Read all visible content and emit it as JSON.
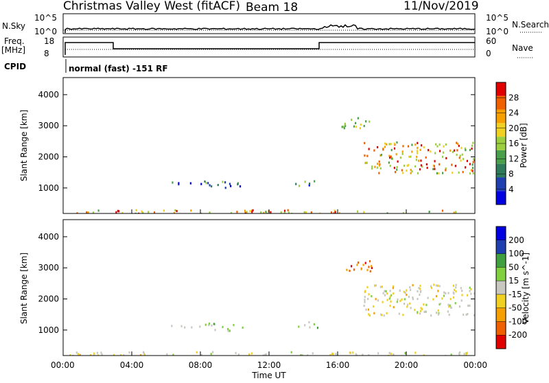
{
  "header": {
    "station": "Christmas Valley West (fitACF)",
    "beam": "Beam 18",
    "date": "11/Nov/2019"
  },
  "status_panels": {
    "nsky": {
      "label": "N.Sky",
      "ticks": [
        "10^5",
        "10^0"
      ]
    },
    "nsearch": {
      "label": "N.Search",
      "ticks": [
        "10^5",
        "10^0"
      ]
    },
    "freq": {
      "label": "Freq.",
      "unit": "[MHz]",
      "ticks": [
        "18",
        "8"
      ]
    },
    "nave": {
      "label": "Nave",
      "ticks": [
        "60",
        "0"
      ]
    },
    "cpid": {
      "label": "CPID",
      "mode": "normal (fast) -151 RF"
    }
  },
  "chart_data": [
    {
      "type": "heatmap",
      "name": "power",
      "xlabel": "Time UT",
      "ylabel": "Slant Range [km]",
      "x_ticks": [
        "00:00",
        "04:00",
        "08:00",
        "12:00",
        "16:00",
        "20:00",
        "00:00"
      ],
      "xlim_hours": [
        0,
        24
      ],
      "y_ticks": [
        1000,
        2000,
        3000,
        4000
      ],
      "ylim": [
        180,
        4550
      ],
      "colorbar": {
        "label": "Power [dB]",
        "ticks": [
          "28",
          "24",
          "20",
          "16",
          "12",
          "8",
          "4"
        ],
        "colors": [
          "#0000e0",
          "#1f3fb0",
          "#2f7a5a",
          "#4a9f4a",
          "#9ccf40",
          "#f0d020",
          "#f5a000",
          "#f06000",
          "#e00000"
        ]
      },
      "echo_regions": [
        {
          "t": [
            0.2,
            23.8
          ],
          "r": [
            200,
            320
          ],
          "level": "high"
        },
        {
          "t": [
            6.0,
            8.5
          ],
          "r": [
            1100,
            1250
          ],
          "level": "low"
        },
        {
          "t": [
            8.5,
            10.5
          ],
          "r": [
            1000,
            1250
          ],
          "level": "low"
        },
        {
          "t": [
            13.5,
            14.8
          ],
          "r": [
            1100,
            1300
          ],
          "level": "low"
        },
        {
          "t": [
            16.2,
            18.0
          ],
          "r": [
            2900,
            3300
          ],
          "level": "mid"
        },
        {
          "t": [
            17.5,
            24.0
          ],
          "r": [
            1500,
            2500
          ],
          "level": "high"
        }
      ]
    },
    {
      "type": "heatmap",
      "name": "velocity",
      "xlabel": "Time UT",
      "ylabel": "Slant Range [km]",
      "x_ticks": [
        "00:00",
        "04:00",
        "08:00",
        "12:00",
        "16:00",
        "20:00",
        "00:00"
      ],
      "xlim_hours": [
        0,
        24
      ],
      "y_ticks": [
        1000,
        2000,
        3000,
        4000
      ],
      "ylim": [
        180,
        4550
      ],
      "colorbar": {
        "label": "Velocity [m s^-1]",
        "ticks": [
          "200",
          "100",
          "50",
          "15",
          "-15",
          "-50",
          "-100",
          "-200"
        ],
        "colors": [
          "#e00000",
          "#f06000",
          "#f5a000",
          "#f0d020",
          "#c8c8c0",
          "#80d040",
          "#40a040",
          "#1f3fb0",
          "#0000e0"
        ]
      },
      "echo_regions": [
        {
          "t": [
            0.2,
            23.8
          ],
          "r": [
            200,
            330
          ],
          "level": "ground"
        },
        {
          "t": [
            6.0,
            8.5
          ],
          "r": [
            1100,
            1250
          ],
          "level": "slow"
        },
        {
          "t": [
            8.5,
            10.5
          ],
          "r": [
            1000,
            1250
          ],
          "level": "positive"
        },
        {
          "t": [
            13.5,
            14.8
          ],
          "r": [
            1100,
            1300
          ],
          "level": "positive"
        },
        {
          "t": [
            16.2,
            18.0
          ],
          "r": [
            2900,
            3300
          ],
          "level": "fast"
        },
        {
          "t": [
            17.5,
            24.0
          ],
          "r": [
            1500,
            2500
          ],
          "level": "ground"
        }
      ]
    }
  ]
}
